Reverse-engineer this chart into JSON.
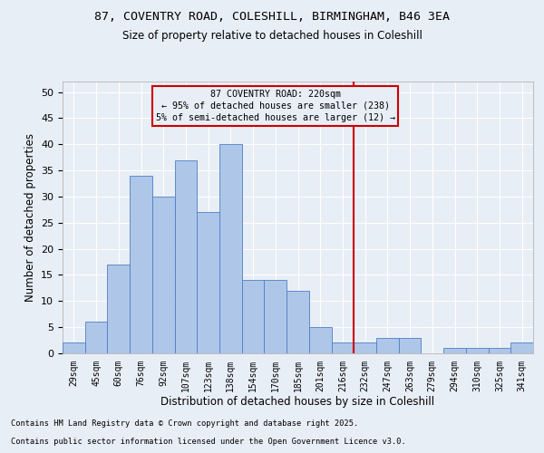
{
  "title1": "87, COVENTRY ROAD, COLESHILL, BIRMINGHAM, B46 3EA",
  "title2": "Size of property relative to detached houses in Coleshill",
  "xlabel": "Distribution of detached houses by size in Coleshill",
  "ylabel": "Number of detached properties",
  "footnote1": "Contains HM Land Registry data © Crown copyright and database right 2025.",
  "footnote2": "Contains public sector information licensed under the Open Government Licence v3.0.",
  "bar_labels": [
    "29sqm",
    "45sqm",
    "60sqm",
    "76sqm",
    "92sqm",
    "107sqm",
    "123sqm",
    "138sqm",
    "154sqm",
    "170sqm",
    "185sqm",
    "201sqm",
    "216sqm",
    "232sqm",
    "247sqm",
    "263sqm",
    "279sqm",
    "294sqm",
    "310sqm",
    "325sqm",
    "341sqm"
  ],
  "bar_values": [
    2,
    6,
    17,
    34,
    30,
    37,
    27,
    40,
    14,
    14,
    12,
    5,
    2,
    2,
    3,
    3,
    0,
    1,
    1,
    1,
    2
  ],
  "bar_color": "#aec6e8",
  "bar_edgecolor": "#4e7fc4",
  "bg_color": "#e8eef6",
  "grid_color": "#ffffff",
  "vline_x": 12.5,
  "vline_color": "#cc0000",
  "annotation_title": "87 COVENTRY ROAD: 220sqm",
  "annotation_line1": "← 95% of detached houses are smaller (238)",
  "annotation_line2": "5% of semi-detached houses are larger (12) →",
  "annotation_box_color": "#cc0000",
  "ylim": [
    0,
    52
  ],
  "yticks": [
    0,
    5,
    10,
    15,
    20,
    25,
    30,
    35,
    40,
    45,
    50
  ],
  "figsize": [
    6.0,
    5.0
  ],
  "dpi": 100
}
